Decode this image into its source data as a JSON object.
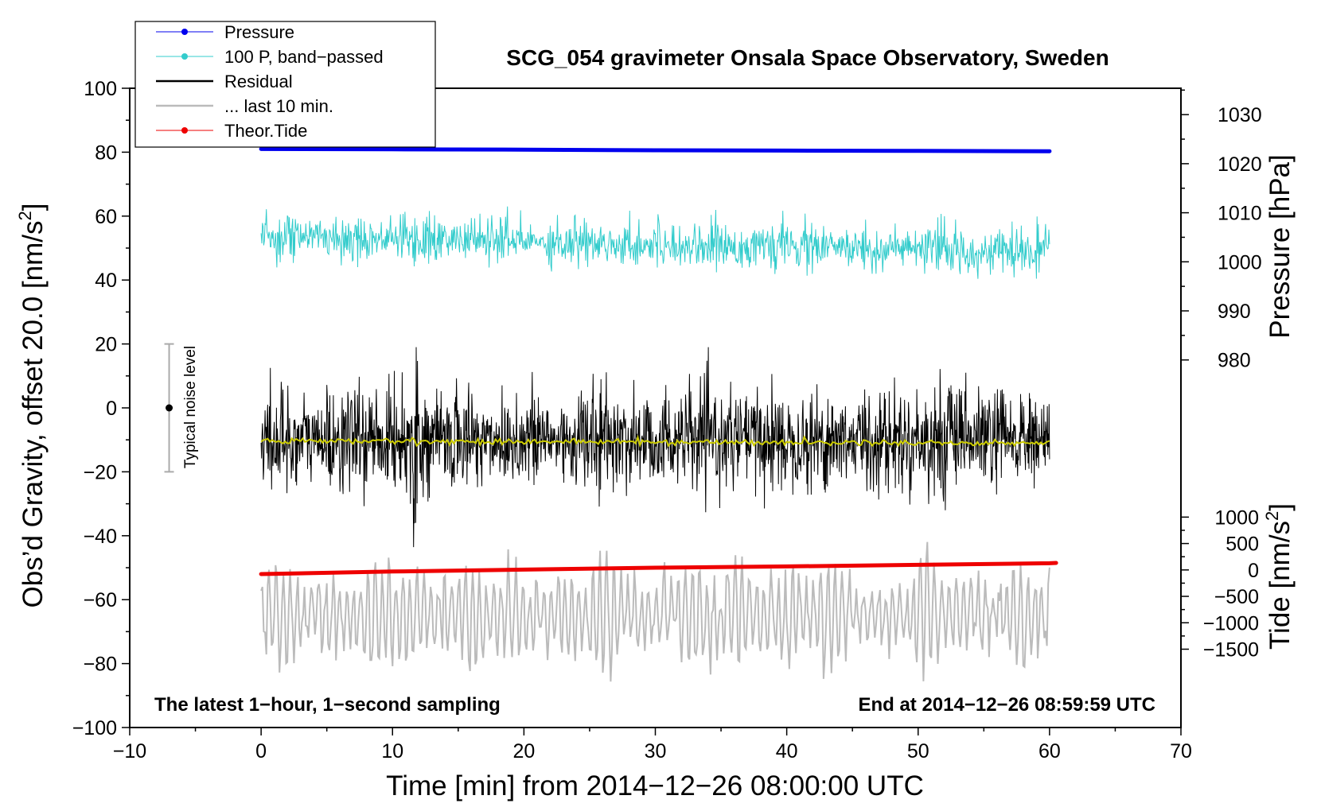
{
  "chart_data": {
    "type": "line",
    "title": "SCG_054 gravimeter Onsala Space Observatory, Sweden",
    "xlabel": "Time [min] from 2014−12−26 08:00:00 UTC",
    "ylabel_left": "Obs’d Gravity, offset 20.0 [nm/s",
    "ylabel_left_sup": "2",
    "ylabel_left_tail": "]",
    "ylabel_right_pressure": "Pressure [hPa]",
    "ylabel_right_tide": "Tide [nm/s",
    "ylabel_right_tide_sup": "2",
    "ylabel_right_tide_tail": "]",
    "xlim": [
      -10,
      70
    ],
    "ylim": [
      -100,
      100
    ],
    "x_ticks": [
      -10,
      0,
      10,
      20,
      30,
      40,
      50,
      60,
      70
    ],
    "x_tick_labels": [
      "−10",
      "0",
      "10",
      "20",
      "30",
      "40",
      "50",
      "60",
      "70"
    ],
    "y_ticks": [
      -100,
      -80,
      -60,
      -40,
      -20,
      0,
      20,
      40,
      60,
      80,
      100
    ],
    "y_tick_labels": [
      "−100",
      "−80",
      "−60",
      "−40",
      "−20",
      "0",
      "20",
      "40",
      "60",
      "80",
      "100"
    ],
    "pressure_ticks": [
      980,
      990,
      1000,
      1010,
      1020,
      1030
    ],
    "pressure_tick_labels": [
      "980",
      "990",
      "1000",
      "1010",
      "1020",
      "1030"
    ],
    "pressure_axis_map": {
      "left_value_at_980": 15,
      "left_per_hpa": 1.535
    },
    "tide_ticks": [
      -1500,
      -1000,
      -500,
      0,
      500,
      1000
    ],
    "tide_tick_labels": [
      "−1500",
      "−1000",
      "−500",
      "0",
      "500",
      "1000"
    ],
    "tide_axis_map": {
      "left_value_at_0": -50.7,
      "left_per_unit": 0.01653
    },
    "legend": [
      {
        "label": "Pressure",
        "color": "#0000ee",
        "marker": true
      },
      {
        "label": "100 P, band−passed",
        "color": "#33cccc",
        "marker": true
      },
      {
        "label": "Residual",
        "color": "#000000",
        "marker": false
      },
      {
        "label": "... last 10 min.",
        "color": "#bbbbbb",
        "marker": false
      },
      {
        "label": "Theor.Tide",
        "color": "#ee0000",
        "marker": true
      }
    ],
    "series": [
      {
        "name": "Pressure",
        "axis": "left_equiv",
        "x": [
          0,
          10,
          20,
          30,
          40,
          50,
          60
        ],
        "values": [
          81.0,
          80.9,
          80.8,
          80.6,
          80.5,
          80.4,
          80.3
        ],
        "color": "#0000ee"
      },
      {
        "name": "100 P, band−passed",
        "axis": "left",
        "x_range": [
          0,
          60
        ],
        "center": 50,
        "amplitude": 6,
        "color": "#33cccc"
      },
      {
        "name": "Residual",
        "axis": "left",
        "x_range": [
          0,
          60
        ],
        "center": -10,
        "amplitude": 12,
        "color": "#000000"
      },
      {
        "name": "Residual smoothed",
        "axis": "left",
        "x_range": [
          0,
          60
        ],
        "center": -10.3,
        "color": "#cccc00"
      },
      {
        "name": "... last 10 min.",
        "axis": "left",
        "x_range": [
          0,
          60
        ],
        "center": -65,
        "amplitude": 12,
        "color": "#bbbbbb"
      },
      {
        "name": "Theor.Tide",
        "axis": "left_equiv",
        "x": [
          0,
          10,
          20,
          30,
          40,
          50,
          60,
          60.5
        ],
        "values": [
          -52.0,
          -51.2,
          -50.6,
          -50.0,
          -49.6,
          -49.1,
          -48.6,
          -48.5
        ],
        "color": "#ee0000"
      }
    ],
    "noise_bar": {
      "label": "Typical noise level",
      "x": -7,
      "y": 0,
      "low": -20,
      "high": 20,
      "color": "#aaaaaa"
    },
    "annotation_left": "The latest 1−hour, 1−second sampling",
    "annotation_right": "End at 2014−12−26 08:59:59 UTC"
  }
}
